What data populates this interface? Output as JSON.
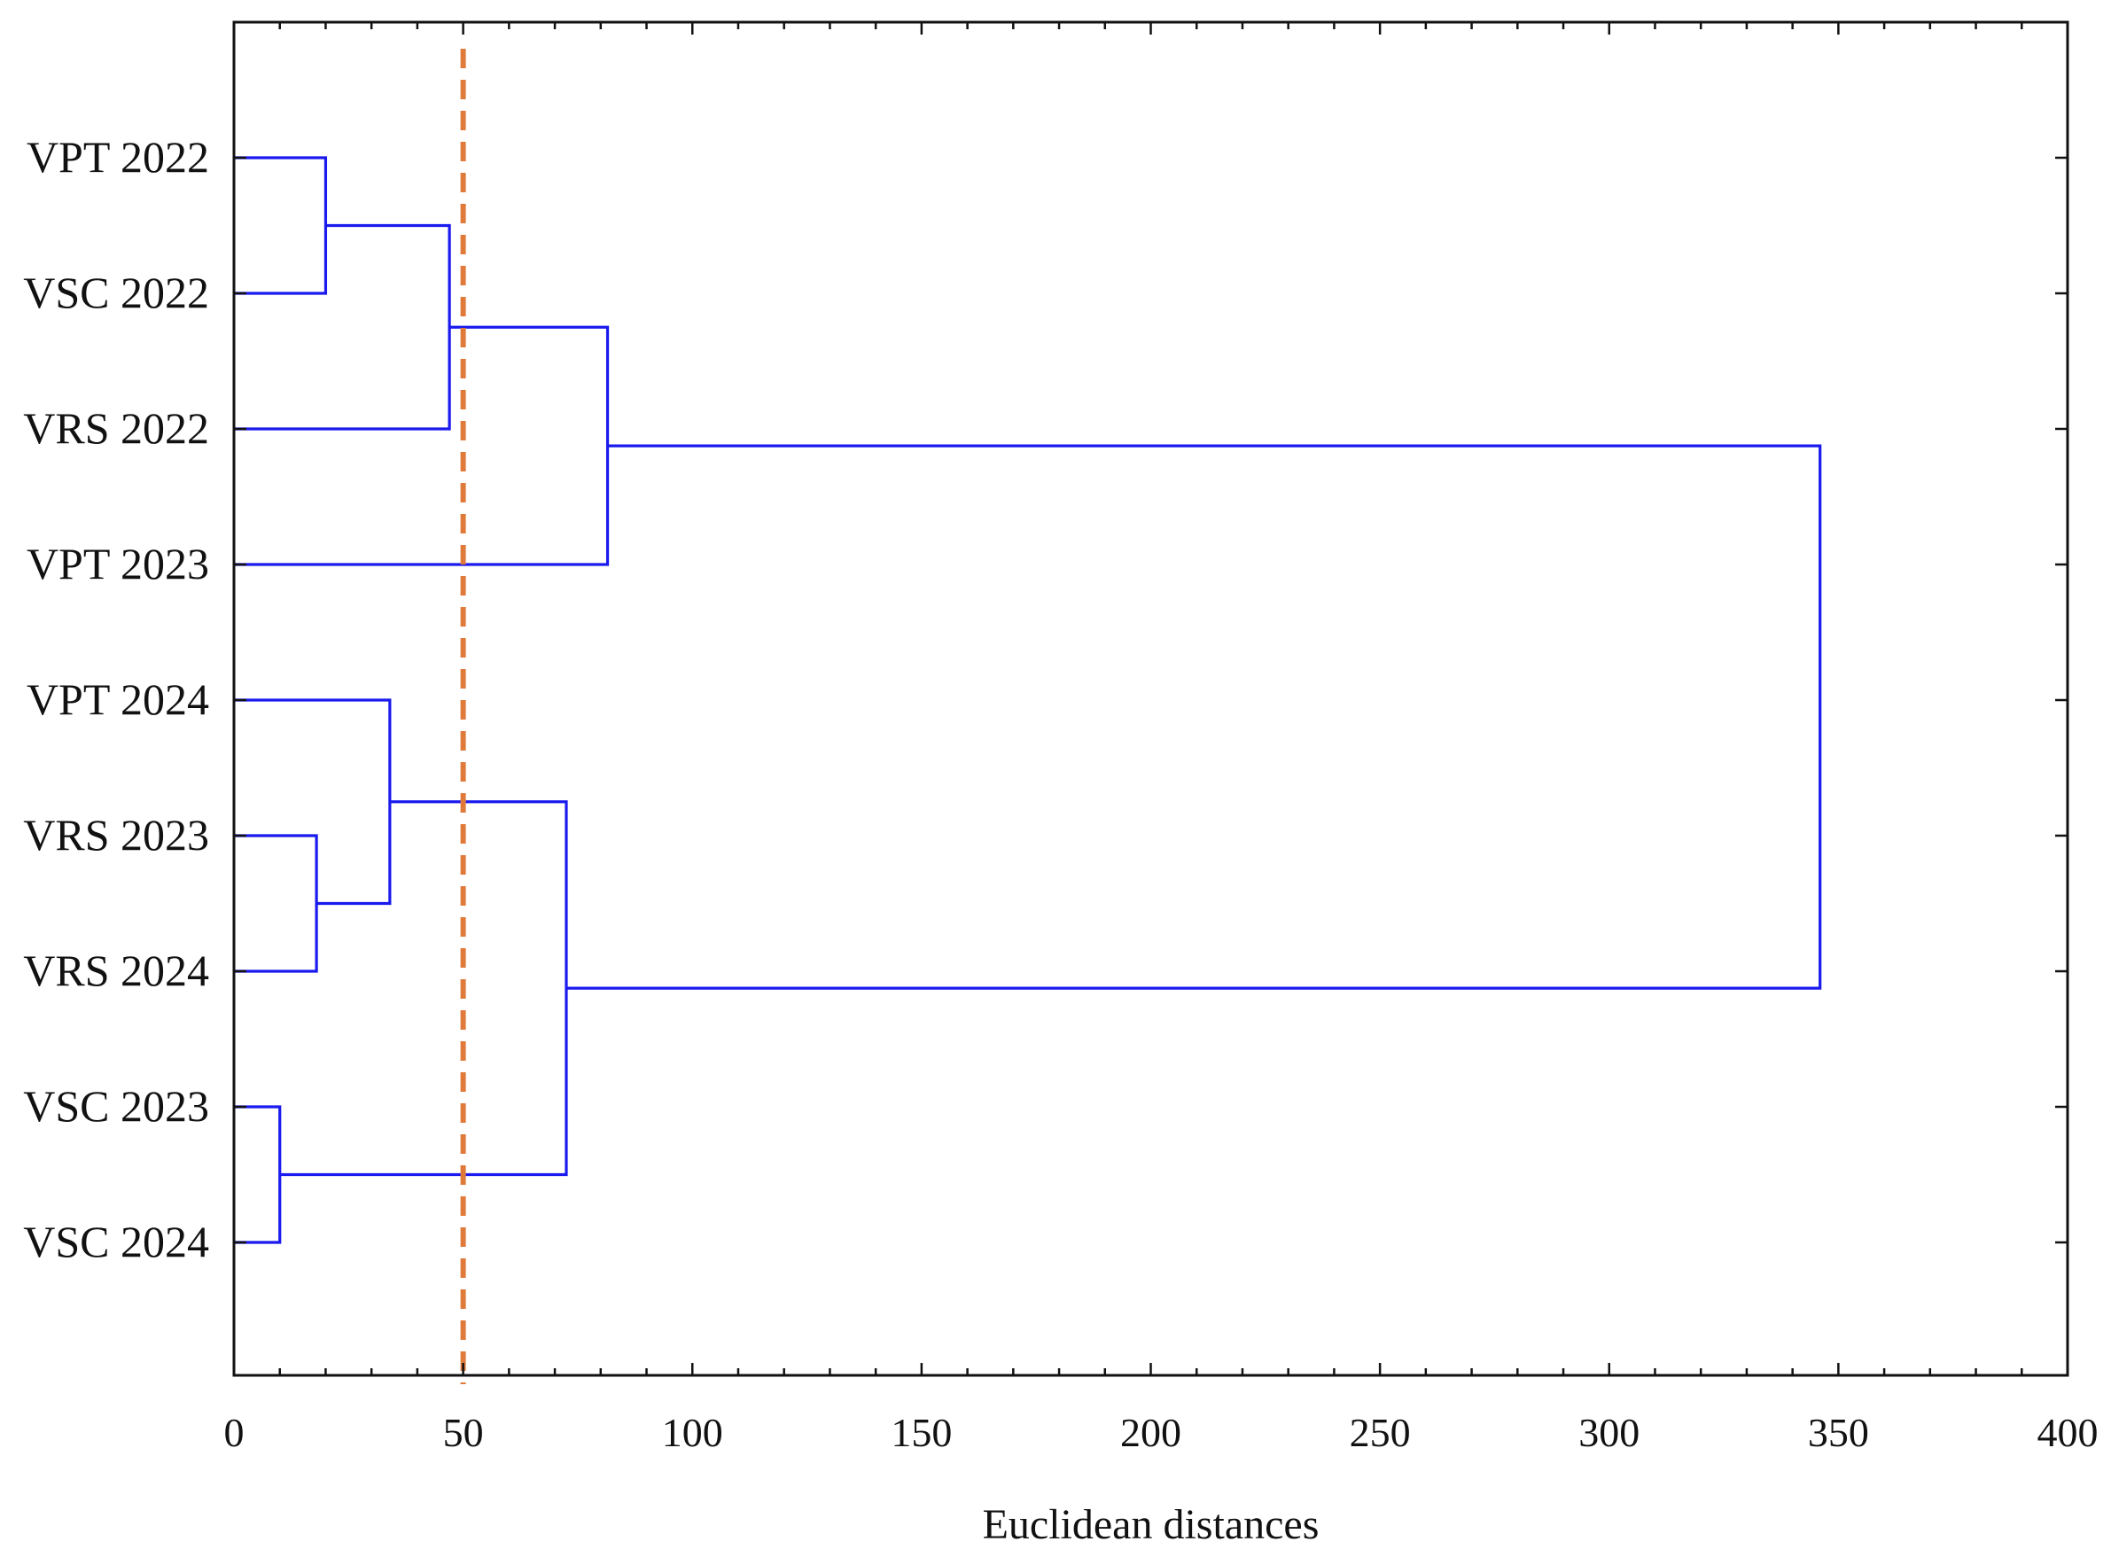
{
  "chart_data": {
    "type": "dendrogram",
    "title": "",
    "xlabel": "Euclidean distances",
    "ylabel": "",
    "xlim": [
      0,
      400
    ],
    "x_ticks": [
      0,
      50,
      100,
      150,
      200,
      250,
      300,
      350,
      400
    ],
    "x_tick_labels": [
      "0",
      "50",
      "100",
      "150",
      "200",
      "250",
      "300",
      "350",
      "400"
    ],
    "minor_tick_step": 10,
    "grid": false,
    "leaves": [
      "VPT 2022",
      "VSC 2022",
      "VRS 2022",
      "VPT 2023",
      "VPT 2024",
      "VRS 2023",
      "VRS 2024",
      "VSC 2023",
      "VSC 2024"
    ],
    "merges": [
      {
        "id": "c1",
        "left": "VPT 2022",
        "right": "VSC 2022",
        "distance": 20
      },
      {
        "id": "c2",
        "left": "c1",
        "right": "VRS 2022",
        "distance": 47
      },
      {
        "id": "c3",
        "left": "c2",
        "right": "VPT 2023",
        "distance": 81.5
      },
      {
        "id": "c4",
        "left": "VRS 2023",
        "right": "VRS 2024",
        "distance": 18
      },
      {
        "id": "c5",
        "left": "VPT 2024",
        "right": "c4",
        "distance": 34
      },
      {
        "id": "c6",
        "left": "VSC 2023",
        "right": "VSC 2024",
        "distance": 10
      },
      {
        "id": "c7",
        "left": "c5",
        "right": "c6",
        "distance": 72.5
      },
      {
        "id": "c8",
        "left": "c3",
        "right": "c7",
        "distance": 346
      }
    ],
    "cut_line": {
      "x": 50,
      "style": "dashed"
    },
    "colors": {
      "branches": "#1a1aee",
      "cut_line": "#e07a3a",
      "frame": "#111111"
    }
  }
}
